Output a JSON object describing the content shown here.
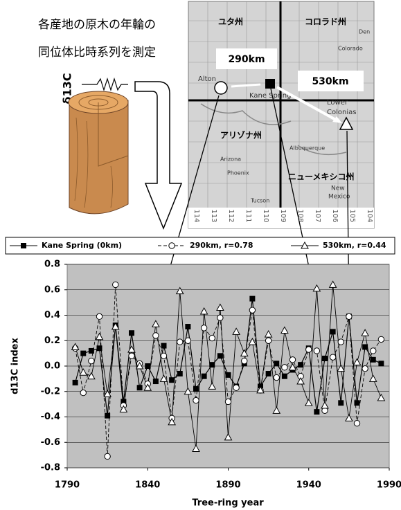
{
  "header": {
    "lines": [
      "各産地の原木の年輪の",
      "同位体比時系列を測定"
    ],
    "isotope": "δ13C"
  },
  "map": {
    "states": [
      "ユタ州",
      "コロラド州",
      "アリゾナ州",
      "ニューメキシコ州"
    ],
    "distances": [
      "290km",
      "530km"
    ],
    "places": [
      "Alton",
      "Kane Spring",
      "Lower",
      "Colonias",
      "Den",
      "Colorado",
      "Albuquerque",
      "Arizona",
      "Phoenix",
      "New",
      "Mexico",
      "Tucson"
    ],
    "longitudes": [
      "114",
      "113",
      "112",
      "111",
      "110",
      "109",
      "108",
      "107",
      "106",
      "105",
      "104"
    ]
  },
  "chart_data": {
    "type": "line",
    "x_label": "Tree-ring year",
    "y_label": "d13C index",
    "x": [
      1795,
      1800,
      1805,
      1810,
      1815,
      1820,
      1825,
      1830,
      1835,
      1840,
      1845,
      1850,
      1855,
      1860,
      1865,
      1870,
      1875,
      1880,
      1885,
      1890,
      1895,
      1900,
      1905,
      1910,
      1915,
      1920,
      1925,
      1930,
      1935,
      1940,
      1945,
      1950,
      1955,
      1960,
      1965,
      1970,
      1975,
      1980,
      1985
    ],
    "series": [
      {
        "name": "Kane Spring (0km)",
        "color": "#000000",
        "marker": "square",
        "line_style": "solid",
        "values": [
          -0.13,
          0.1,
          0.12,
          0.14,
          -0.39,
          0.32,
          -0.28,
          0.26,
          -0.17,
          0.0,
          -0.12,
          0.16,
          -0.11,
          -0.06,
          0.31,
          -0.18,
          -0.08,
          0.01,
          0.08,
          -0.07,
          -0.16,
          0.02,
          0.53,
          -0.16,
          -0.06,
          0.02,
          -0.08,
          -0.03,
          0.01,
          0.14,
          -0.36,
          0.06,
          0.27,
          -0.29,
          0.39,
          -0.29,
          0.15,
          0.05,
          0.02
        ]
      },
      {
        "name": "290km, r=0.78",
        "color": "#000000",
        "marker": "circle",
        "line_style": "dashed",
        "values": [
          0.14,
          -0.21,
          0.04,
          0.39,
          -0.71,
          0.64,
          -0.31,
          0.08,
          0.02,
          -0.14,
          0.24,
          0.08,
          -0.41,
          0.19,
          0.2,
          -0.27,
          0.3,
          0.22,
          0.38,
          -0.28,
          -0.17,
          0.04,
          0.44,
          -0.19,
          0.2,
          -0.09,
          -0.01,
          0.05,
          -0.08,
          0.13,
          0.12,
          -0.35,
          0.07,
          0.19,
          0.39,
          -0.45,
          -0.02,
          0.12,
          0.21
        ]
      },
      {
        "name": "530km, r=0.44",
        "color": "#000000",
        "marker": "triangle",
        "line_style": "solid",
        "values": [
          0.15,
          -0.05,
          -0.08,
          0.23,
          -0.22,
          0.31,
          -0.34,
          0.13,
          0.0,
          -0.17,
          0.33,
          -0.1,
          -0.44,
          0.59,
          -0.2,
          -0.65,
          0.43,
          -0.16,
          0.46,
          -0.56,
          0.27,
          0.1,
          0.19,
          -0.19,
          0.25,
          -0.35,
          0.28,
          -0.01,
          -0.12,
          -0.29,
          0.61,
          -0.31,
          0.64,
          -0.02,
          -0.41,
          0.03,
          0.26,
          -0.1,
          -0.25
        ]
      }
    ],
    "xlim": [
      1790,
      1990
    ],
    "xticks": [
      1790,
      1840,
      1890,
      1940,
      1990
    ],
    "ylim": [
      -0.8,
      0.8
    ],
    "yticks": [
      -0.8,
      -0.6,
      -0.4,
      -0.2,
      {
        "value": 0,
        "label": "0.0"
      },
      0.2,
      0.4,
      0.6,
      0.8
    ],
    "grid": true,
    "plot_background": "#c0c0c0",
    "legend": "top"
  }
}
